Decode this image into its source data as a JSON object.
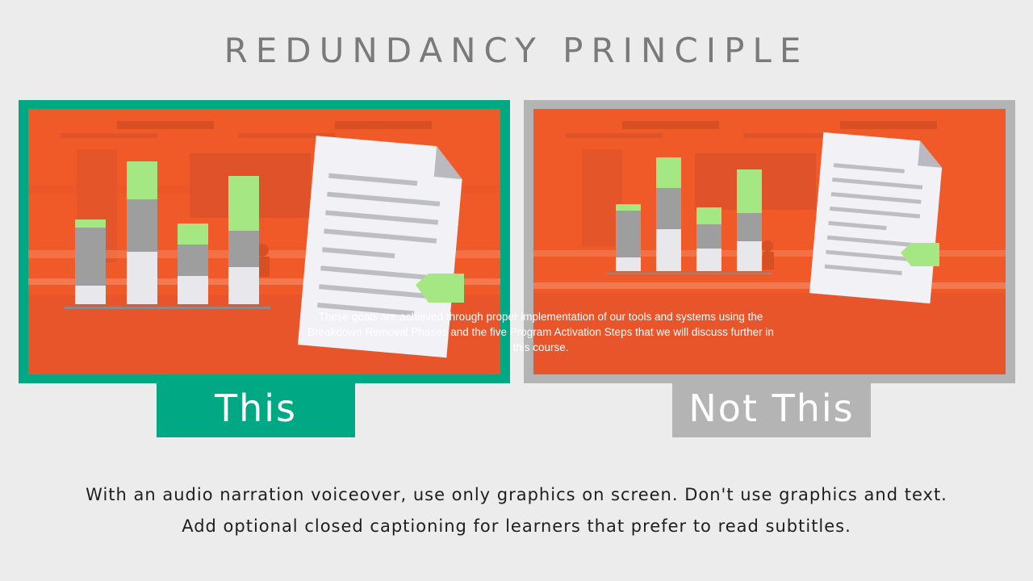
{
  "title": "REDUNDANCY PRINCIPLE",
  "good_label": "This",
  "bad_label": "Not This",
  "bad_caption": "These goals are achieved through proper implementation of our tools and systems using the Breakdown Removal Phases and the five Program Activation Steps that we will discuss further in this course.",
  "footer": {
    "line1": "With an audio narration voiceover, use only graphics on screen. Don't use graphics and text.",
    "line2": "Add optional closed captioning for learners that prefer to read subtitles."
  },
  "colors": {
    "good": "#00a884",
    "bad": "#b4b4b4",
    "scene_bg": "#f05a28",
    "bar_green": "#a5e883",
    "bar_gray": "#9e9e9e",
    "bar_light": "#e8e8ec"
  },
  "icons": [
    "bar-chart-icon",
    "document-icon",
    "tag-icon"
  ]
}
